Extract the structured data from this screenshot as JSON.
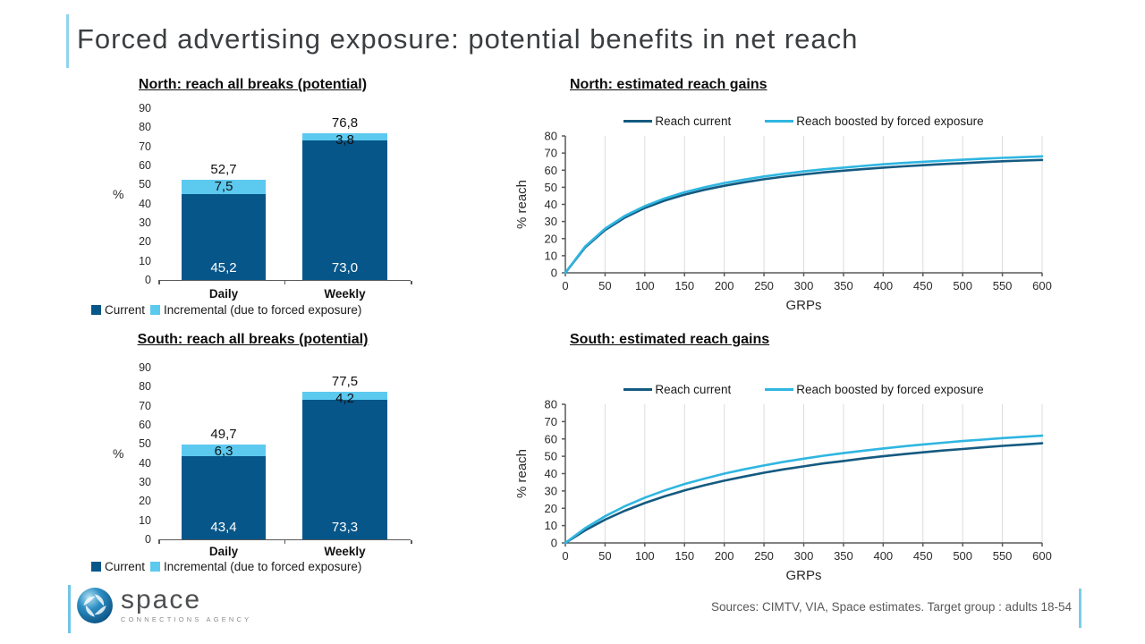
{
  "slide": {
    "title": "Forced advertising exposure: potential benefits in net reach",
    "footer": "Sources:  CIMTV, VIA, Space estimates. Target group : adults 18-54"
  },
  "logo": {
    "name": "space",
    "tagline": "CONNECTIONS AGENCY",
    "globe_icon": "blue-sphere-swirl"
  },
  "colors": {
    "bar_current": "#07568a",
    "bar_incremental": "#5cc9ef",
    "line_current": "#155a80",
    "line_boosted": "#2fb6e1",
    "accent_light_blue": "#8fd4ee",
    "axis_gray": "#595959",
    "grid_gray": "#dcdcdc",
    "title_gray": "#3b3e40",
    "footer_gray": "#595959"
  },
  "chart_data": [
    {
      "type": "bar",
      "id": "north-bars",
      "title": "North: reach all breaks (potential)",
      "ylabel": "%",
      "ylim": [
        0,
        90
      ],
      "ytick_step": 10,
      "grid": false,
      "legend_position": "bottom",
      "categories": [
        "Daily",
        "Weekly"
      ],
      "series": [
        {
          "name": "Current",
          "values": [
            45.2,
            73.0
          ],
          "labels": [
            "45,2",
            "73,0"
          ]
        },
        {
          "name": "Incremental (due to forced exposure)",
          "values": [
            7.5,
            3.8
          ],
          "labels": [
            "7,5",
            "3,8"
          ]
        }
      ],
      "totals": {
        "values": [
          52.7,
          76.8
        ],
        "labels": [
          "52,7",
          "76,8"
        ]
      }
    },
    {
      "type": "line",
      "id": "north-lines",
      "title": "North: estimated reach gains",
      "xlabel": "GRPs",
      "ylabel": "% reach",
      "xlim": [
        0,
        600
      ],
      "ylim": [
        0,
        80
      ],
      "xtick_step": 50,
      "ytick_step": 10,
      "grid": "vertical",
      "legend_position": "top",
      "x": [
        0,
        25,
        50,
        75,
        100,
        125,
        150,
        175,
        200,
        225,
        250,
        275,
        300,
        325,
        350,
        375,
        400,
        425,
        450,
        475,
        500,
        525,
        550,
        575,
        600
      ],
      "series": [
        {
          "name": "Reach current",
          "y": [
            0,
            14.9,
            25.0,
            32.3,
            37.9,
            42.2,
            45.7,
            48.5,
            50.9,
            52.9,
            54.7,
            56.2,
            57.5,
            58.7,
            59.7,
            60.6,
            61.5,
            62.2,
            62.9,
            63.6,
            64.1,
            64.7,
            65.2,
            65.6,
            66.0
          ]
        },
        {
          "name": "Reach boosted by forced exposure",
          "y": [
            0,
            15.4,
            25.8,
            33.3,
            39.0,
            43.5,
            47.1,
            50.0,
            52.5,
            54.5,
            56.3,
            57.9,
            59.3,
            60.5,
            61.5,
            62.5,
            63.4,
            64.2,
            64.9,
            65.5,
            66.1,
            66.7,
            67.2,
            67.6,
            68.1
          ]
        }
      ]
    },
    {
      "type": "bar",
      "id": "south-bars",
      "title": "South: reach all breaks (potential)",
      "ylabel": "%",
      "ylim": [
        0,
        90
      ],
      "ytick_step": 10,
      "grid": false,
      "legend_position": "bottom",
      "categories": [
        "Daily",
        "Weekly"
      ],
      "series": [
        {
          "name": "Current",
          "values": [
            43.4,
            73.3
          ],
          "labels": [
            "43,4",
            "73,3"
          ]
        },
        {
          "name": "Incremental (due to forced exposure)",
          "values": [
            6.3,
            4.2
          ],
          "labels": [
            "6,3",
            "4,2"
          ]
        }
      ],
      "totals": {
        "values": [
          49.7,
          77.5
        ],
        "labels": [
          "49,7",
          "77,5"
        ]
      }
    },
    {
      "type": "line",
      "id": "south-lines",
      "title": "South: estimated reach gains",
      "xlabel": "GRPs",
      "ylabel": "% reach",
      "xlim": [
        0,
        600
      ],
      "ylim": [
        0,
        80
      ],
      "xtick_step": 50,
      "ytick_step": 10,
      "grid": "vertical",
      "legend_position": "top",
      "x": [
        0,
        25,
        50,
        75,
        100,
        125,
        150,
        175,
        200,
        225,
        250,
        275,
        300,
        325,
        350,
        375,
        400,
        425,
        450,
        475,
        500,
        525,
        550,
        575,
        600
      ],
      "series": [
        {
          "name": "Reach current",
          "y": [
            0,
            7.3,
            13.4,
            18.6,
            23.0,
            26.9,
            30.3,
            33.3,
            35.9,
            38.3,
            40.5,
            42.5,
            44.2,
            45.9,
            47.3,
            48.7,
            50.0,
            51.2,
            52.3,
            53.3,
            54.2,
            55.1,
            56.0,
            56.7,
            57.5
          ]
        },
        {
          "name": "Reach boosted by forced exposure",
          "y": [
            0,
            8.5,
            15.4,
            21.2,
            26.1,
            30.3,
            34.0,
            37.1,
            40.0,
            42.5,
            44.7,
            46.8,
            48.6,
            50.3,
            51.8,
            53.2,
            54.5,
            55.7,
            56.8,
            57.8,
            58.8,
            59.6,
            60.5,
            61.2,
            61.9
          ]
        }
      ]
    }
  ]
}
